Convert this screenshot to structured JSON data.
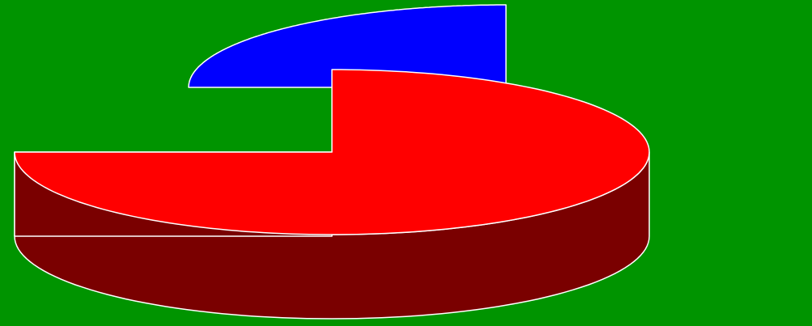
{
  "chart_data": {
    "type": "pie",
    "style": "3d-exploded",
    "legend": "none",
    "labels": "none",
    "background_color": "#009400",
    "slices": [
      {
        "value": 75,
        "top_color": "#ff0000",
        "side_color": "#7a0000",
        "exploded": false
      },
      {
        "value": 25,
        "top_color": "#0000ff",
        "side_color": "#000078",
        "exploded": true
      }
    ]
  }
}
